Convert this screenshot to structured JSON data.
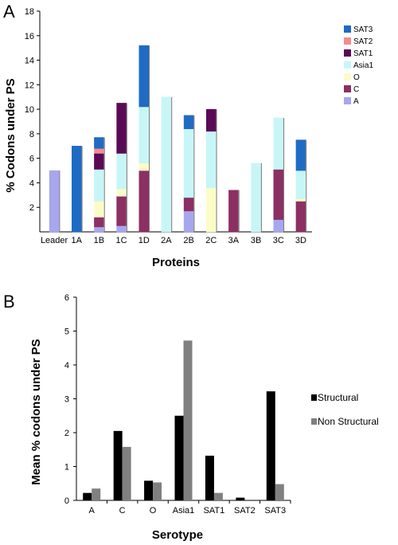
{
  "panels": {
    "a": {
      "letter": "A"
    },
    "b": {
      "letter": "B"
    }
  },
  "chart_data": [
    {
      "type": "bar",
      "stacked": true,
      "xlabel": "Proteins",
      "ylabel": "% Codons under PS",
      "ylim": [
        0,
        18
      ],
      "yticks": [
        2,
        4,
        6,
        8,
        10,
        12,
        14,
        16,
        18
      ],
      "categories": [
        "Leader",
        "1A",
        "1B",
        "1C",
        "1D",
        "2A",
        "2B",
        "2C",
        "3A",
        "3B",
        "3C",
        "3D"
      ],
      "legend_position": "right",
      "series": [
        {
          "name": "A",
          "color": "#a8a6ee",
          "values": [
            5,
            0,
            0.4,
            0.5,
            0,
            0,
            1.7,
            0,
            0,
            0,
            1,
            0
          ]
        },
        {
          "name": "C",
          "color": "#8c2f63",
          "values": [
            0,
            0,
            0.8,
            2.4,
            5,
            0,
            1.1,
            0,
            3.4,
            0,
            4.1,
            2.5
          ]
        },
        {
          "name": "O",
          "color": "#fcfcc8",
          "values": [
            0,
            0,
            1.3,
            0.6,
            0.6,
            0,
            0,
            3.6,
            0,
            0,
            0,
            0.2
          ]
        },
        {
          "name": "Asia1",
          "color": "#c8f6f6",
          "values": [
            0,
            0,
            2.6,
            2.9,
            4.6,
            11,
            5.6,
            4.6,
            0,
            5.6,
            4.2,
            2.3
          ]
        },
        {
          "name": "SAT1",
          "color": "#5a0a55",
          "values": [
            0,
            0,
            1.3,
            4.1,
            0,
            0,
            0,
            1.8,
            0,
            0,
            0,
            0
          ]
        },
        {
          "name": "SAT2",
          "color": "#f58c8c",
          "values": [
            0,
            0,
            0.4,
            0,
            0,
            0,
            0,
            0,
            0,
            0,
            0,
            0
          ]
        },
        {
          "name": "SAT3",
          "color": "#1f6bc4",
          "values": [
            0,
            7,
            0.9,
            0,
            5,
            0,
            1.1,
            0,
            0,
            0,
            0,
            2.5
          ]
        }
      ],
      "legend_order": [
        "SAT3",
        "SAT2",
        "SAT1",
        "Asia1",
        "O",
        "C",
        "A"
      ]
    },
    {
      "type": "bar",
      "grouped": true,
      "xlabel": "Serotype",
      "ylabel": "Mean % codons under PS",
      "ylim": [
        0,
        6
      ],
      "yticks": [
        0,
        1,
        2,
        3,
        4,
        5,
        6
      ],
      "categories": [
        "A",
        "C",
        "O",
        "Asia1",
        "SAT1",
        "SAT2",
        "SAT3"
      ],
      "legend_position": "right",
      "series": [
        {
          "name": "Structural",
          "color": "#000000",
          "values": [
            0.22,
            2.05,
            0.58,
            2.5,
            1.32,
            0.08,
            3.22
          ]
        },
        {
          "name": "Non Structural",
          "color": "#808080",
          "values": [
            0.35,
            1.58,
            0.53,
            4.72,
            0.22,
            0,
            0.48
          ]
        }
      ]
    }
  ]
}
